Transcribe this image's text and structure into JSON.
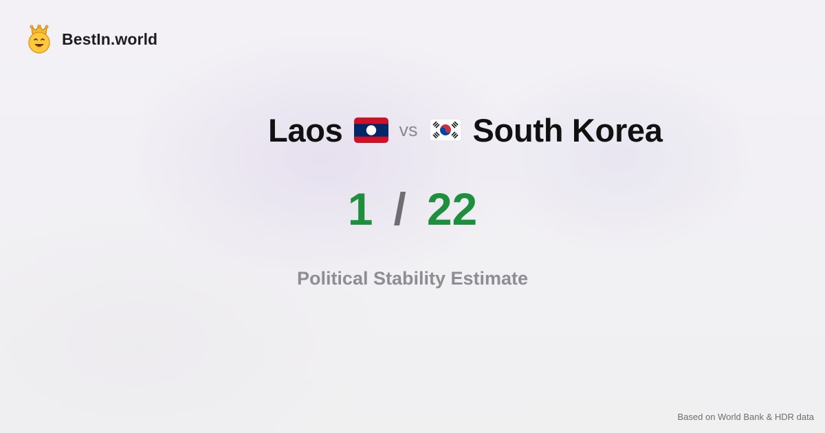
{
  "brand": {
    "name": "BestIn.world",
    "logo_icon": "crowned-smiley-icon"
  },
  "comparison": {
    "country_a": {
      "name": "Laos",
      "flag_icon": "laos-flag-icon",
      "colors": {
        "red": "#ce1126",
        "blue": "#002868",
        "white": "#ffffff"
      }
    },
    "vs_label": "vs",
    "country_b": {
      "name": "South Korea",
      "flag_icon": "south-korea-flag-icon",
      "colors": {
        "red": "#cd2e3a",
        "blue": "#0047a0",
        "black": "#000000"
      }
    }
  },
  "scores": {
    "a": "1",
    "separator": "/",
    "b": "22",
    "color": "#1e8f3c"
  },
  "metric": {
    "label": "Political Stability Estimate"
  },
  "footer": {
    "source": "Based on World Bank & HDR data"
  }
}
